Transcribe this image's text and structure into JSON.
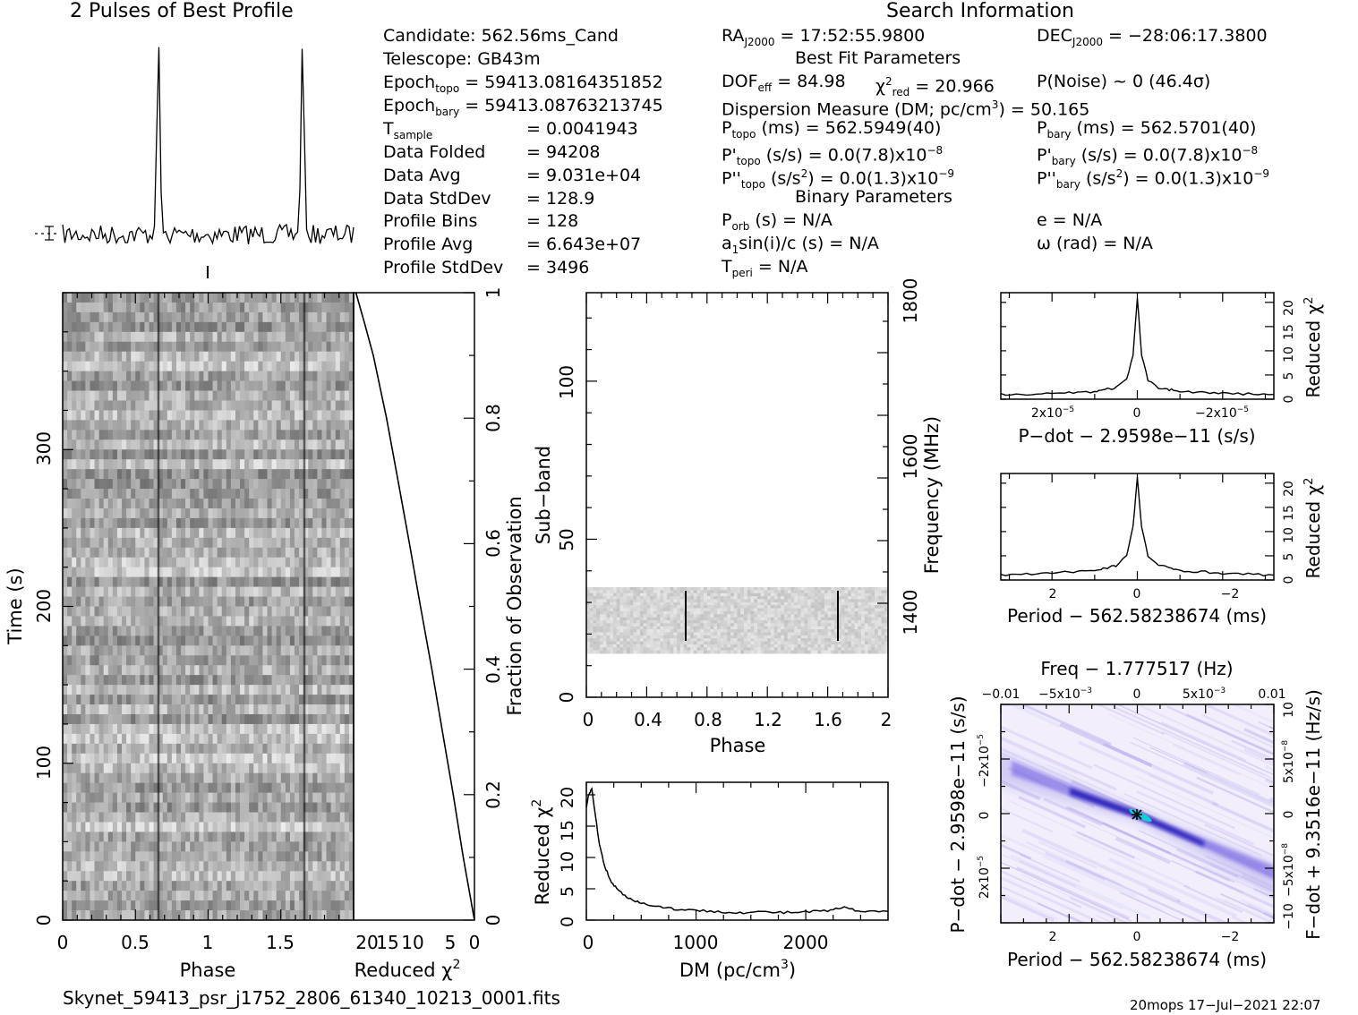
{
  "header": {
    "profile_title": "2 Pulses of Best Profile",
    "search_title": "Search Information"
  },
  "info": {
    "candidate": "Candidate:  562.56ms_Cand",
    "telescope": "Telescope:  GB43m",
    "epoch_topo_label": "Epoch",
    "epoch_topo_sub": "topo",
    "epoch_topo_value": " = 59413.08164351852",
    "epoch_bary_label": "Epoch",
    "epoch_bary_sub": "bary",
    "epoch_bary_value": " = 59413.08763213745",
    "tsample_label": "T",
    "tsample_sub": "sample",
    "tsample_value": "=   0.0041943",
    "data_folded_label": "Data Folded",
    "data_folded_value": "=   94208",
    "data_avg_label": "Data Avg",
    "data_avg_value": "=   9.031e+04",
    "data_std_label": "Data StdDev",
    "data_std_value": "=   128.9",
    "profile_bins_label": "Profile Bins",
    "profile_bins_value": "=   128",
    "profile_avg_label": "Profile Avg",
    "profile_avg_value": "=   6.643e+07",
    "profile_std_label": "Profile StdDev",
    "profile_std_value": "=   3496"
  },
  "search": {
    "ra_label": "RA",
    "ra_sub": "J2000",
    "ra_value": " = 17:52:55.9800",
    "dec_label": "DEC",
    "dec_sub": "J2000",
    "dec_value": " = −28:06:17.3800",
    "best_fit_title": "Best Fit Parameters",
    "dof_label": "DOF",
    "dof_sub": "eff",
    "dof_value": " = 84.98",
    "chi_label": "χ",
    "chi_sup": "2",
    "chi_sub": "red",
    "chi_value": " = 20.966",
    "pnoise": "P(Noise) ~ 0   (46.4σ)",
    "dm_text": "Dispersion Measure (DM; pc/cm",
    "dm_sup": "3",
    "dm_value": ") = 50.165",
    "ptopo_label": "P",
    "ptopo_sub": "topo",
    "ptopo_value": " (ms) =  562.5949(40)",
    "pbary_label": "P",
    "pbary_sub": "bary",
    "pbary_value": " (ms) =  562.5701(40)",
    "pdtopo_label": "P'",
    "pdtopo_sub": "topo",
    "pdtopo_value": " (s/s) = 0.0(7.8)x10",
    "pdtopo_exp": "−8",
    "pdbary_label": "P'",
    "pdbary_sub": "bary",
    "pdbary_value": " (s/s) = 0.0(7.8)x10",
    "pdbary_exp": "−8",
    "pddtopo_label": "P''",
    "pddtopo_sub": "topo",
    "pddtopo_value": " (s/s",
    "pddtopo_sup": "2",
    "pddtopo_value2": ") = 0.0(1.3)x10",
    "pddtopo_exp": "−9",
    "pddbary_label": "P''",
    "pddbary_sub": "bary",
    "pddbary_value": " (s/s",
    "pddbary_sup": "2",
    "pddbary_value2": ") = 0.0(1.3)x10",
    "pddbary_exp": "−9",
    "binary_title": "Binary Parameters",
    "porb_label": "P",
    "porb_sub": "orb",
    "porb_value": " (s) = N/A",
    "e_value": "e = N/A",
    "a1_label": "a",
    "a1_sub": "1",
    "a1_value": "sin(i)/c (s) = N/A",
    "omega_value": "ω (rad) = N/A",
    "tperi_label": "T",
    "tperi_sub": "peri",
    "tperi_value": " = N/A"
  },
  "footer": {
    "filename": "Skynet_59413_psr_j1752_2806_61340_10213_0001.fits",
    "stamp": "20mops 17−Jul−2021 22:07"
  },
  "colors": {
    "ink": "#000000",
    "cyan": "#00d0d0",
    "ppdot_base": "#ece4fa",
    "ppdot_band": "#3020c0"
  },
  "chart_data": [
    {
      "type": "line",
      "name_key": "pulse-profile",
      "x": [
        0,
        2
      ],
      "description_values": {
        "peak_phase_1": 0.65,
        "peak_phase_2": 1.65
      }
    },
    {
      "type": "heatmap",
      "name_key": "time-phase",
      "xlabel": "Phase",
      "ylabel": "Time (s)",
      "xlim": [
        0,
        2
      ],
      "ylim": [
        0,
        400
      ],
      "xticks": [
        "0",
        "0.5",
        "1",
        "1.5"
      ],
      "yticks": [
        "0",
        "100",
        "200",
        "300"
      ],
      "pulse_phase": [
        0.65,
        1.65
      ]
    },
    {
      "type": "line",
      "name_key": "reduced-chi2-vs-fraction",
      "xlabel": "Reduced χ",
      "xlabel_sup": "2",
      "ylabel": "Fraction of Observation",
      "xticks": [
        "20",
        "15",
        "10",
        "5",
        "0"
      ],
      "yticks": [
        "0",
        "0.2",
        "0.4",
        "0.6",
        "0.8",
        "1"
      ],
      "fraction": [
        0,
        0.1,
        0.2,
        0.3,
        0.4,
        0.5,
        0.6,
        0.7,
        0.8,
        0.9,
        0.95,
        1.0
      ],
      "chi2": [
        0,
        2.0,
        3.8,
        5.6,
        7.6,
        9.6,
        11.6,
        13.6,
        15.6,
        18.0,
        19.5,
        21.0
      ]
    },
    {
      "type": "heatmap",
      "name_key": "subband-phase",
      "xlabel": "Phase",
      "ylabel": "Sub−band",
      "y2label": "Frequency (MHz)",
      "xticks": [
        "0",
        "0.4",
        "0.8",
        "1.2",
        "1.6",
        "2"
      ],
      "yticks": [
        "0",
        "50",
        "100"
      ],
      "y2ticks": [
        "1400",
        "1600",
        "1800"
      ],
      "xlim": [
        0,
        2
      ],
      "ylim": [
        0,
        128
      ],
      "band_range": [
        14,
        35
      ],
      "pulse_phase": [
        0.65,
        1.65
      ]
    },
    {
      "type": "line",
      "name_key": "dm-chi2",
      "xlabel": "DM (pc/cm",
      "xlabel_sup": "3",
      "xlabel_end": ")",
      "ylabel": "Reduced χ",
      "ylabel_sup": "2",
      "xticks": [
        "0",
        "1000",
        "2000"
      ],
      "yticks": [
        "0",
        "5",
        "10",
        "15",
        "20"
      ],
      "xlim": [
        0,
        2750
      ],
      "ylim": [
        0,
        22
      ],
      "x": [
        0,
        20,
        50,
        80,
        120,
        170,
        230,
        300,
        400,
        500,
        650,
        800,
        1000,
        1200,
        1400,
        1600,
        1800,
        2000,
        2200,
        2350,
        2500,
        2750
      ],
      "y": [
        18,
        20,
        21,
        17,
        12,
        8.5,
        6,
        4.6,
        3.4,
        2.7,
        2.2,
        1.8,
        1.5,
        1.4,
        1.2,
        1.3,
        1.2,
        1.3,
        1.5,
        2.0,
        1.3,
        1.4
      ]
    },
    {
      "type": "line",
      "name_key": "pdot-chi2",
      "xlabel": "P−dot − 2.9598e−11 (s/s)",
      "ylabel": "Reduced χ",
      "ylabel_sup": "2",
      "xticks": [
        "2x10",
        "0",
        "−2x10"
      ],
      "xtick_exp": "−5",
      "yticks": [
        "0",
        "5",
        "10",
        "15",
        "20"
      ],
      "ylim": [
        0,
        22
      ],
      "xlim": [
        3.2,
        -3.2
      ],
      "x": [
        3.2,
        2.0,
        1.0,
        0.5,
        0.25,
        0.1,
        0.0,
        -0.1,
        -0.25,
        -0.5,
        -1.0,
        -2.0,
        -3.2
      ],
      "y": [
        1.0,
        1.2,
        1.6,
        2.4,
        4.0,
        9.0,
        21.0,
        9.0,
        4.0,
        2.4,
        1.6,
        1.2,
        1.0
      ]
    },
    {
      "type": "line",
      "name_key": "period-chi2",
      "xlabel": "Period − 562.58238674 (ms)",
      "ylabel": "Reduced χ",
      "ylabel_sup": "2",
      "xticks": [
        "2",
        "0",
        "−2"
      ],
      "yticks": [
        "0",
        "5",
        "10",
        "15",
        "20"
      ],
      "ylim": [
        0,
        22
      ],
      "xlim": [
        3.2,
        -3.2
      ],
      "x": [
        3.2,
        2.0,
        1.0,
        0.5,
        0.25,
        0.1,
        0.0,
        -0.1,
        -0.25,
        -0.5,
        -1.0,
        -2.0,
        -3.2
      ],
      "y": [
        1.0,
        1.4,
        2.0,
        3.0,
        5.0,
        11.0,
        21.0,
        11.0,
        5.0,
        3.0,
        2.0,
        1.4,
        1.0
      ]
    },
    {
      "type": "heatmap",
      "name_key": "p-pdot",
      "title": "Freq − 1.777517 (Hz)",
      "xlabel": "Period − 562.58238674 (ms)",
      "ylabel": "P−dot − 2.9598e−11 (s/s)",
      "y2label": "F−dot + 9.3516e−11 (Hz/s)",
      "top_ticks": [
        "−0.01",
        "−5x10",
        "0",
        "5x10",
        "0.01"
      ],
      "top_tick_exp": "−3",
      "xticks": [
        "2",
        "0",
        "−2"
      ],
      "yticks": [
        "−2x10",
        "0",
        "2x10"
      ],
      "ytick_exp": "−5",
      "y2ticks": [
        "10",
        "5x10",
        "0",
        "−5x10",
        "−10"
      ],
      "y2tick_exp": "−8",
      "best_fit": [
        0,
        0
      ]
    }
  ]
}
